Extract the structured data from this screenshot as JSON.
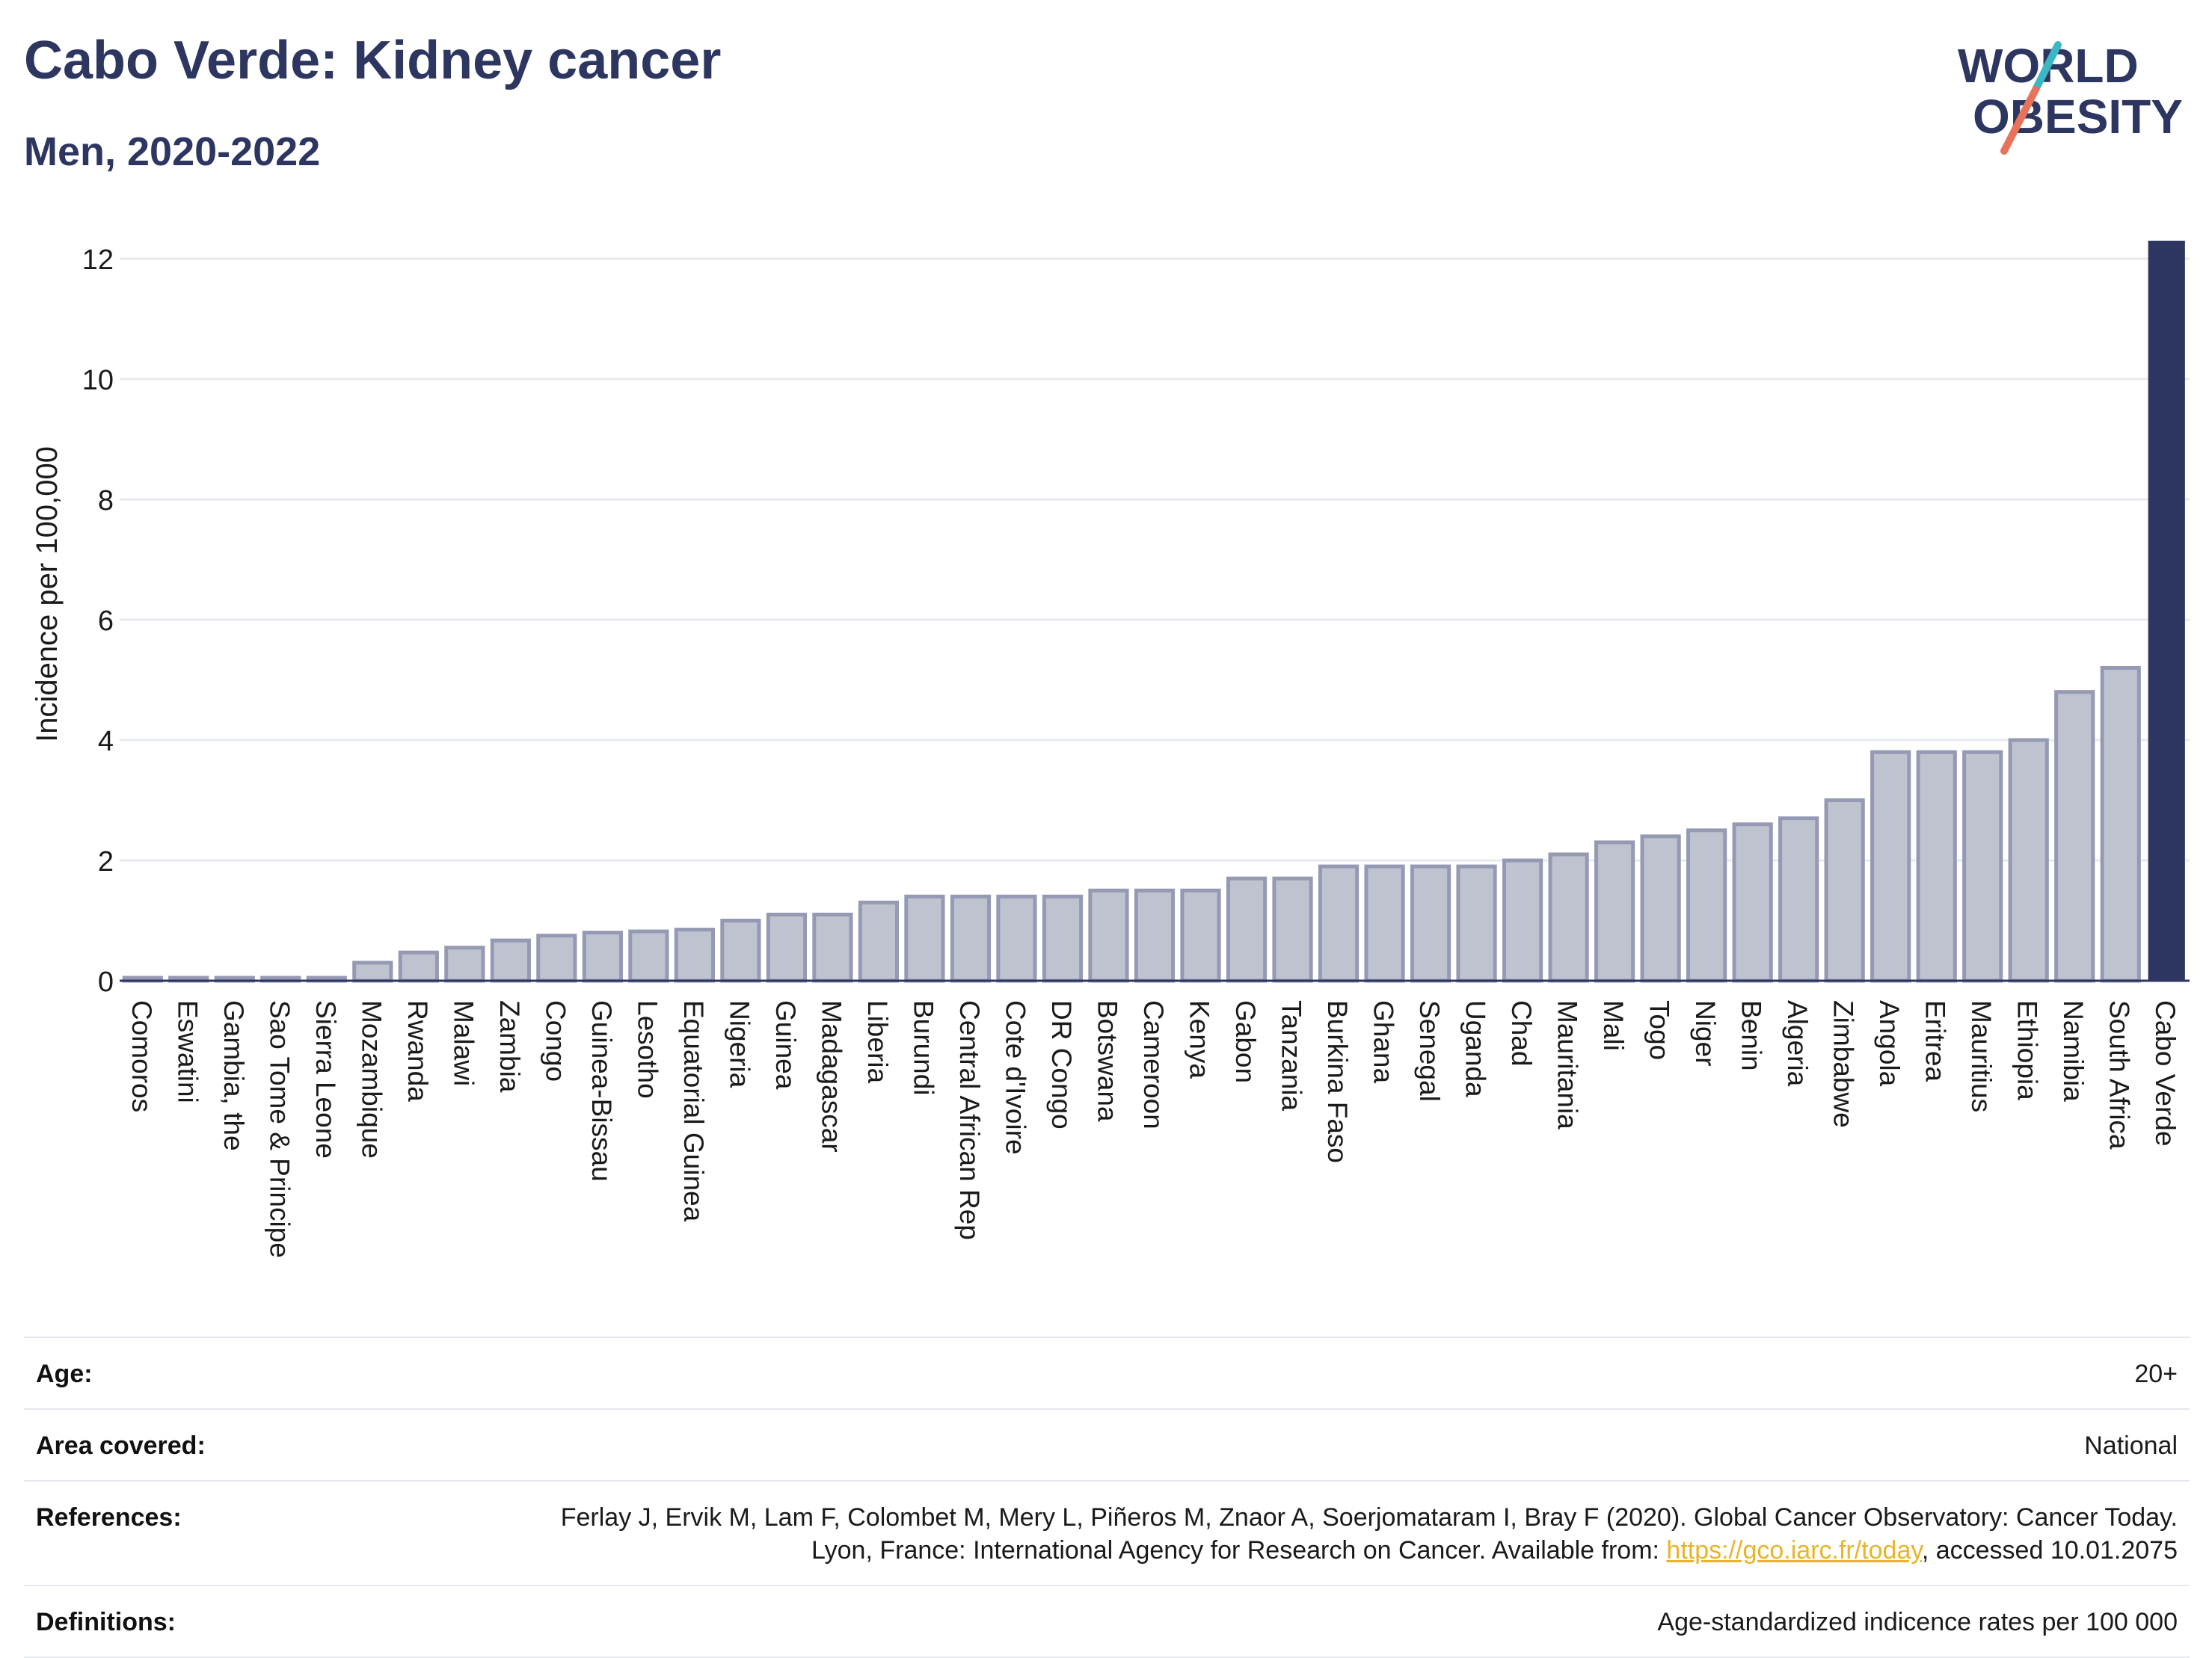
{
  "header": {
    "title": "Cabo Verde: Kidney cancer",
    "subtitle": "Men, 2020-2022"
  },
  "logo": {
    "line1": "WORLD",
    "line2": "OBESITY",
    "accent_teal": "#3bb8c4",
    "accent_coral": "#e8735a"
  },
  "colors": {
    "bar": "#bfc3d0",
    "bar_edge": "#9599b3",
    "highlight": "#2c3660",
    "grid": "#e6e9ef",
    "text": "#2c3660"
  },
  "chart_data": {
    "type": "bar",
    "title": "Cabo Verde: Kidney cancer",
    "subtitle": "Men, 2020-2022",
    "ylabel": "Incidence per 100,000",
    "xlabel": "",
    "ylim": [
      0,
      12.3
    ],
    "yticks": [
      0,
      2,
      4,
      6,
      8,
      10,
      12
    ],
    "grid": true,
    "highlight": "Cabo Verde",
    "categories": [
      "Comoros",
      "Eswatini",
      "Gambia, the",
      "Sao Tome & Principe",
      "Sierra Leone",
      "Mozambique",
      "Rwanda",
      "Malawi",
      "Zambia",
      "Congo",
      "Guinea-Bissau",
      "Lesotho",
      "Equatorial Guinea",
      "Nigeria",
      "Guinea",
      "Madagascar",
      "Liberia",
      "Burundi",
      "Central African Rep",
      "Cote d'Ivoire",
      "DR Congo",
      "Botswana",
      "Cameroon",
      "Kenya",
      "Gabon",
      "Tanzania",
      "Burkina Faso",
      "Ghana",
      "Senegal",
      "Uganda",
      "Chad",
      "Mauritania",
      "Mali",
      "Togo",
      "Niger",
      "Benin",
      "Algeria",
      "Zimbabwe",
      "Angola",
      "Eritrea",
      "Mauritius",
      "Ethiopia",
      "Namibia",
      "South Africa",
      "Cabo Verde"
    ],
    "values": [
      0.05,
      0.05,
      0.05,
      0.05,
      0.05,
      0.3,
      0.47,
      0.55,
      0.67,
      0.75,
      0.8,
      0.82,
      0.85,
      1.0,
      1.1,
      1.1,
      1.3,
      1.4,
      1.4,
      1.4,
      1.4,
      1.5,
      1.5,
      1.5,
      1.7,
      1.7,
      1.9,
      1.9,
      1.9,
      1.9,
      2.0,
      2.1,
      2.3,
      2.4,
      2.5,
      2.6,
      2.7,
      3.0,
      3.8,
      3.8,
      3.8,
      4.0,
      4.8,
      5.2,
      12.3
    ]
  },
  "footer": {
    "age_label": "Age:",
    "age_value": "20+",
    "area_label": "Area covered:",
    "area_value": "National",
    "references_label": "References:",
    "references_text": "Ferlay J, Ervik M, Lam F, Colombet M, Mery L, Piñeros M, Znaor A, Soerjomataram I, Bray F (2020). Global Cancer Observatory: Cancer Today. Lyon, France: International Agency for Research on Cancer. Available from: ",
    "references_link": "https://gco.iarc.fr/today",
    "references_suffix": ", accessed 10.01.2075",
    "definitions_label": "Definitions:",
    "definitions_value": "Age-standardized indicence rates per 100 000"
  }
}
